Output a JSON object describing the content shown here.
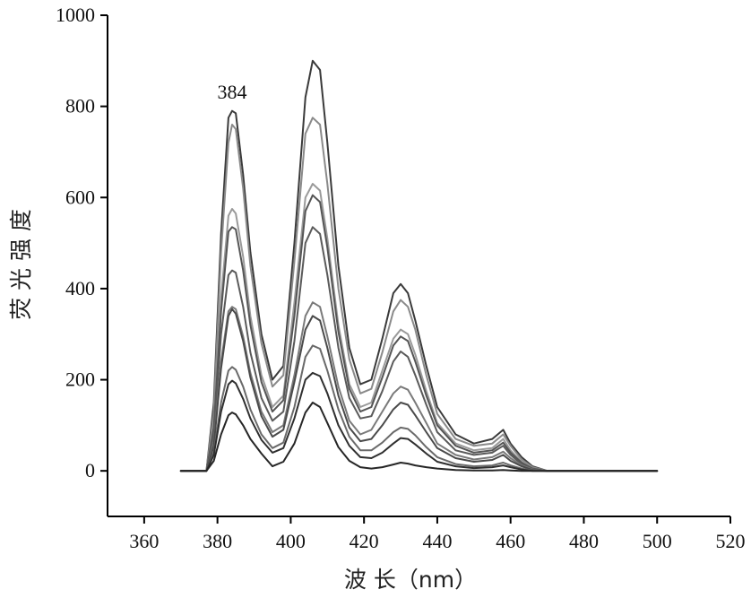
{
  "chart_data": {
    "type": "line",
    "title": "",
    "xlabel": "波 长（nm）",
    "ylabel": "荧 光 强 度",
    "xlim": [
      350,
      520
    ],
    "ylim": [
      -100,
      1000
    ],
    "xticks": [
      360,
      380,
      400,
      420,
      440,
      460,
      480,
      500,
      520
    ],
    "yticks": [
      0,
      200,
      400,
      600,
      800,
      1000
    ],
    "grid": false,
    "legend": "none",
    "annotations": [
      {
        "text": "384",
        "x": 384,
        "y": 805
      }
    ],
    "x": [
      370,
      377,
      379,
      381,
      383,
      384,
      385,
      387,
      389,
      392,
      395,
      398,
      401,
      404,
      406,
      408,
      410,
      413,
      416,
      419,
      422,
      425,
      428,
      430,
      432,
      434,
      437,
      440,
      445,
      450,
      455,
      458,
      460,
      463,
      466,
      470,
      475,
      500
    ],
    "series": [
      {
        "color": "#3a3a3a",
        "values": [
          0,
          0,
          150,
          520,
          775,
          790,
          785,
          650,
          480,
          300,
          200,
          230,
          500,
          820,
          900,
          880,
          720,
          450,
          270,
          190,
          200,
          290,
          390,
          410,
          390,
          330,
          230,
          140,
          80,
          60,
          70,
          90,
          60,
          30,
          10,
          0,
          0,
          0
        ]
      },
      {
        "color": "#8a8a8a",
        "values": [
          0,
          0,
          130,
          480,
          720,
          760,
          750,
          620,
          450,
          280,
          185,
          210,
          460,
          740,
          775,
          760,
          630,
          400,
          245,
          170,
          180,
          260,
          350,
          375,
          360,
          310,
          210,
          125,
          70,
          55,
          60,
          80,
          55,
          25,
          8,
          0,
          0,
          0
        ]
      },
      {
        "color": "#9a9a9a",
        "values": [
          0,
          0,
          100,
          380,
          560,
          575,
          565,
          470,
          340,
          210,
          140,
          165,
          370,
          600,
          630,
          615,
          510,
          320,
          190,
          140,
          150,
          220,
          290,
          310,
          300,
          255,
          175,
          105,
          60,
          45,
          50,
          70,
          45,
          20,
          5,
          0,
          0,
          0
        ]
      },
      {
        "color": "#555555",
        "values": [
          0,
          0,
          95,
          350,
          525,
          535,
          530,
          440,
          320,
          195,
          130,
          155,
          340,
          570,
          605,
          590,
          490,
          305,
          180,
          130,
          140,
          205,
          275,
          295,
          285,
          240,
          165,
          100,
          55,
          40,
          45,
          62,
          40,
          18,
          5,
          0,
          0,
          0
        ]
      },
      {
        "color": "#5a5a5a",
        "values": [
          0,
          0,
          80,
          300,
          430,
          440,
          435,
          360,
          260,
          160,
          110,
          130,
          285,
          500,
          535,
          520,
          430,
          270,
          160,
          115,
          120,
          175,
          240,
          262,
          250,
          210,
          145,
          85,
          45,
          35,
          40,
          55,
          35,
          15,
          4,
          0,
          0,
          0
        ]
      },
      {
        "color": "#7a7a7a",
        "values": [
          0,
          0,
          60,
          240,
          350,
          360,
          355,
          295,
          215,
          130,
          85,
          100,
          210,
          340,
          370,
          360,
          295,
          185,
          110,
          80,
          90,
          130,
          170,
          185,
          178,
          150,
          105,
          60,
          35,
          25,
          30,
          42,
          28,
          12,
          3,
          0,
          0,
          0
        ]
      },
      {
        "color": "#4a4a4a",
        "values": [
          0,
          0,
          55,
          225,
          340,
          355,
          345,
          285,
          205,
          120,
          75,
          90,
          195,
          310,
          340,
          330,
          270,
          165,
          95,
          65,
          70,
          100,
          135,
          150,
          145,
          122,
          85,
          50,
          28,
          20,
          24,
          35,
          22,
          10,
          2,
          0,
          0,
          0
        ]
      },
      {
        "color": "#6a6a6a",
        "values": [
          0,
          0,
          40,
          150,
          220,
          228,
          222,
          185,
          135,
          80,
          50,
          62,
          140,
          250,
          275,
          268,
          220,
          135,
          75,
          45,
          45,
          62,
          85,
          95,
          92,
          78,
          52,
          30,
          15,
          10,
          12,
          18,
          12,
          5,
          1,
          0,
          0,
          0
        ]
      },
      {
        "color": "#2f2f2f",
        "values": [
          0,
          0,
          35,
          130,
          190,
          198,
          192,
          158,
          115,
          68,
          40,
          50,
          115,
          200,
          215,
          208,
          170,
          100,
          55,
          30,
          28,
          40,
          60,
          72,
          70,
          58,
          38,
          20,
          10,
          6,
          8,
          12,
          8,
          3,
          0,
          0,
          0,
          0
        ]
      },
      {
        "color": "#262626",
        "values": [
          0,
          0,
          22,
          80,
          122,
          128,
          124,
          100,
          70,
          38,
          10,
          20,
          60,
          128,
          150,
          140,
          105,
          52,
          22,
          8,
          5,
          8,
          14,
          18,
          16,
          12,
          8,
          5,
          2,
          1,
          1,
          2,
          1,
          0,
          0,
          0,
          0,
          0
        ]
      }
    ]
  }
}
